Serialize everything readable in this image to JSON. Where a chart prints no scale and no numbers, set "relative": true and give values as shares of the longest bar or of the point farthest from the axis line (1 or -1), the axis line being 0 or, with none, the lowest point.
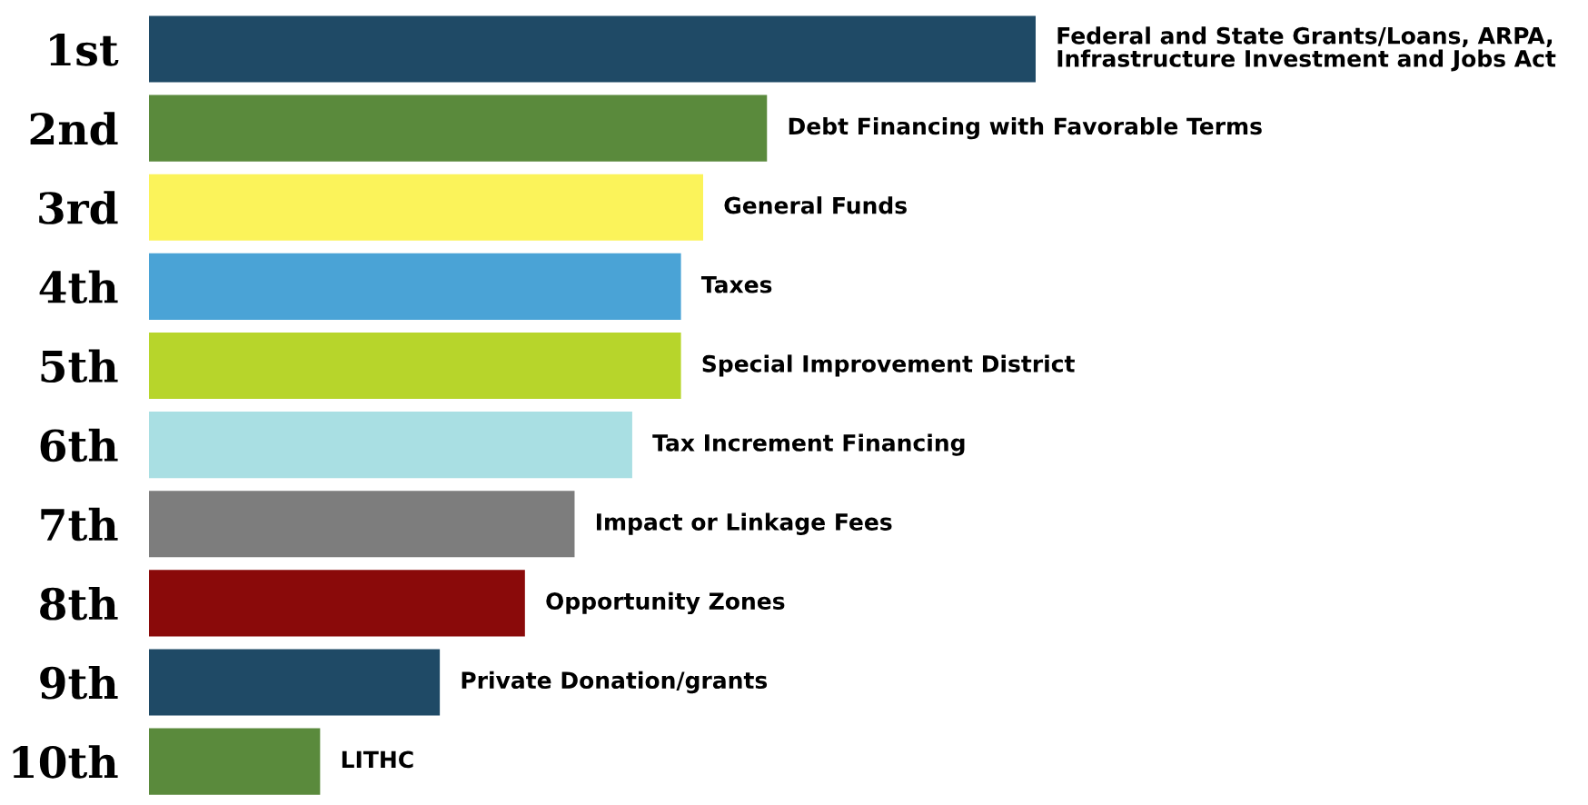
{
  "chart_data": {
    "type": "bar",
    "orientation": "horizontal",
    "relative": true,
    "categories": [
      "1st",
      "2nd",
      "3rd",
      "4th",
      "5th",
      "6th",
      "7th",
      "8th",
      "9th",
      "10th"
    ],
    "values": [
      1,
      0.697,
      0.625,
      0.6,
      0.6,
      0.545,
      0.48,
      0.424,
      0.328,
      0.193
    ],
    "colors": [
      "#1f4a66",
      "#5a8a3c",
      "#fbf35a",
      "#4aa3d6",
      "#b7d52b",
      "#a9dfe3",
      "#7d7d7d",
      "#8a0a0a",
      "#1f4a66",
      "#5a8a3c"
    ],
    "annotations": [
      {
        "text": "Federal and State Grants/Loans, ARPA,\nInfrastructure Investment and Jobs Act",
        "x": 1,
        "y": "1st"
      },
      {
        "text": "Debt Financing with Favorable Terms",
        "x": 0.697,
        "y": "2nd"
      },
      {
        "text": "General Funds",
        "x": 0.625,
        "y": "3rd"
      },
      {
        "text": "Taxes",
        "x": 0.6,
        "y": "4th"
      },
      {
        "text": "Special Improvement District",
        "x": 0.6,
        "y": "5th"
      },
      {
        "text": "Tax Increment Financing",
        "x": 0.545,
        "y": "6th"
      },
      {
        "text": "Impact or Linkage Fees",
        "x": 0.48,
        "y": "7th"
      },
      {
        "text": "Opportunity Zones",
        "x": 0.424,
        "y": "8th"
      },
      {
        "text": "Private Donation/grants",
        "x": 0.328,
        "y": "9th"
      },
      {
        "text": "LITHC",
        "x": 0.193,
        "y": "10th"
      }
    ]
  }
}
